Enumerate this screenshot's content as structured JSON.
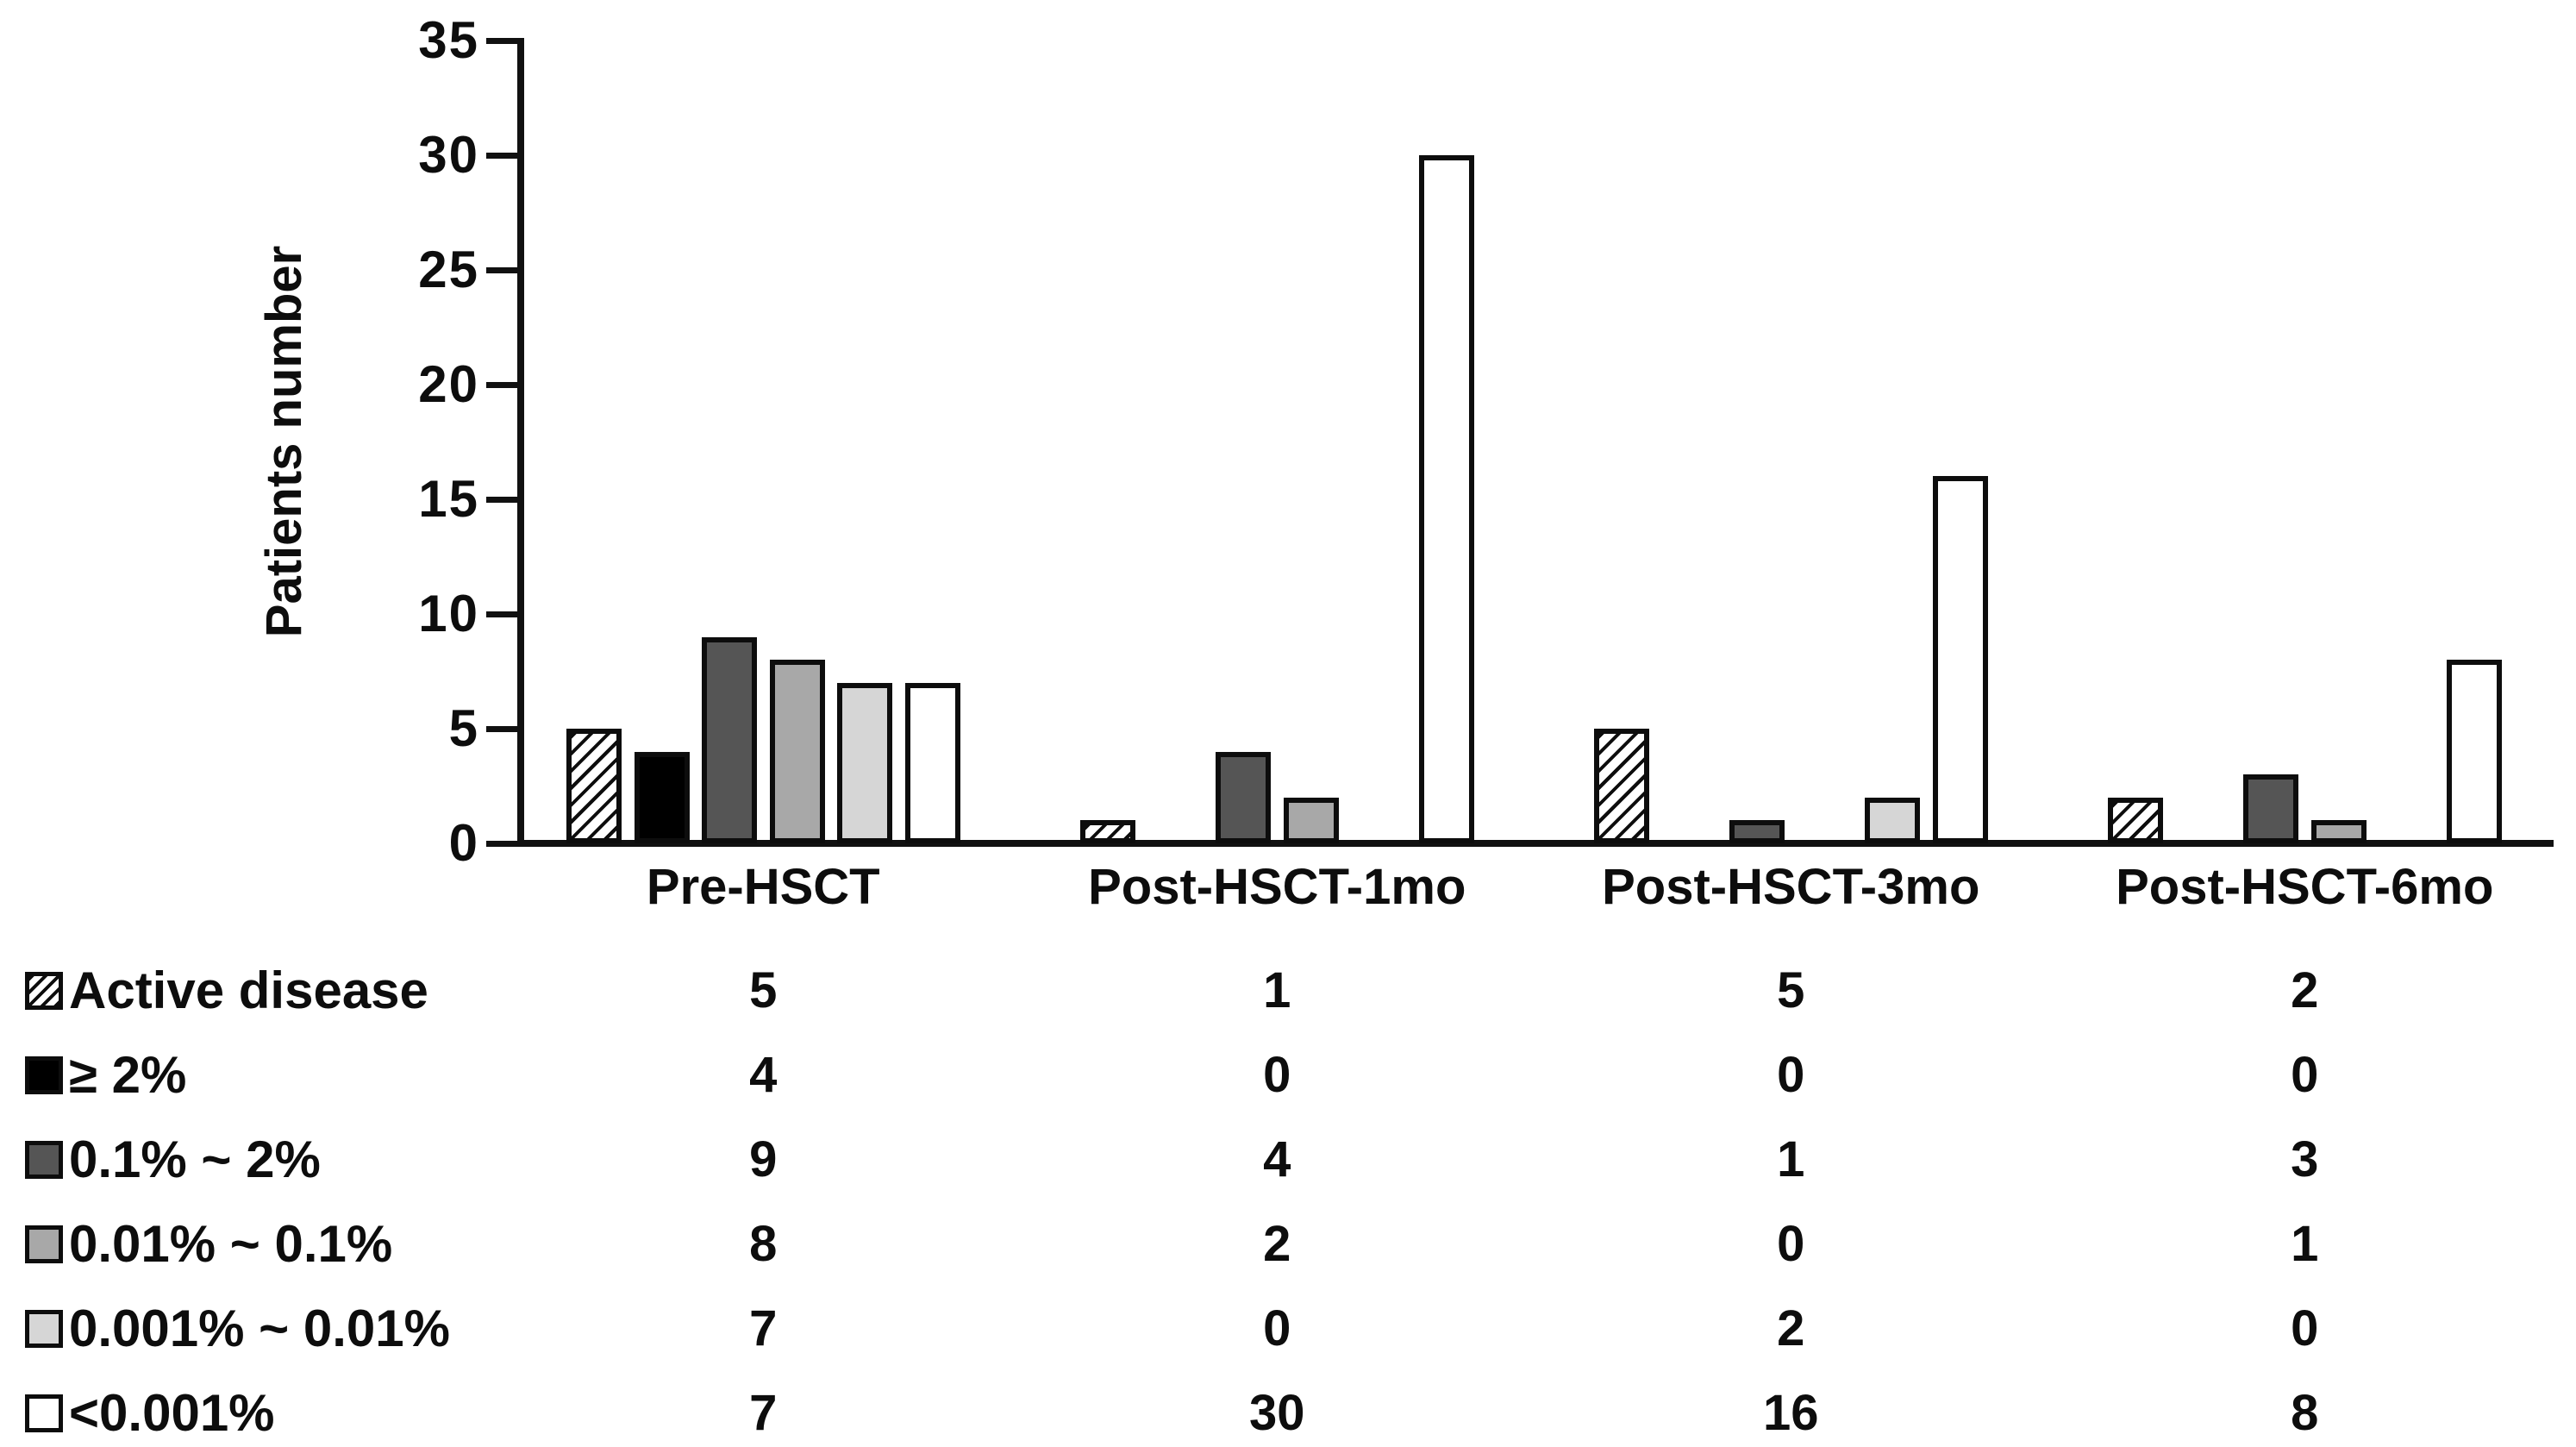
{
  "figure": {
    "background": "#ffffff",
    "axis_color": "#111111"
  },
  "chart_data": {
    "type": "bar",
    "title": "",
    "xlabel": "",
    "ylabel": "Patients number",
    "ylim": [
      0,
      35
    ],
    "yticks": [
      0,
      5,
      10,
      15,
      20,
      25,
      30,
      35
    ],
    "grid": false,
    "legend_position": "left column of data table below chart",
    "categories": [
      "Pre-HSCT",
      "Post-HSCT-1mo",
      "Post-HSCT-3mo",
      "Post-HSCT-6mo"
    ],
    "series": [
      {
        "name": "Active disease",
        "pattern": "diagonal-hatch",
        "fill": "#ffffff",
        "values": [
          5,
          1,
          5,
          2
        ]
      },
      {
        "name": "≥ 2%",
        "pattern": "solid",
        "fill": "#000000",
        "values": [
          4,
          0,
          0,
          0
        ]
      },
      {
        "name": "0.1% ~ 2%",
        "pattern": "solid",
        "fill": "#555555",
        "values": [
          9,
          4,
          1,
          3
        ]
      },
      {
        "name": "0.01% ~ 0.1%",
        "pattern": "solid",
        "fill": "#a8a8a8",
        "values": [
          8,
          2,
          0,
          1
        ]
      },
      {
        "name": "0.001% ~ 0.01%",
        "pattern": "solid",
        "fill": "#d6d6d6",
        "values": [
          7,
          0,
          2,
          0
        ]
      },
      {
        "name": "<0.001%",
        "pattern": "solid",
        "fill": "#ffffff",
        "values": [
          7,
          30,
          16,
          8
        ]
      }
    ]
  }
}
